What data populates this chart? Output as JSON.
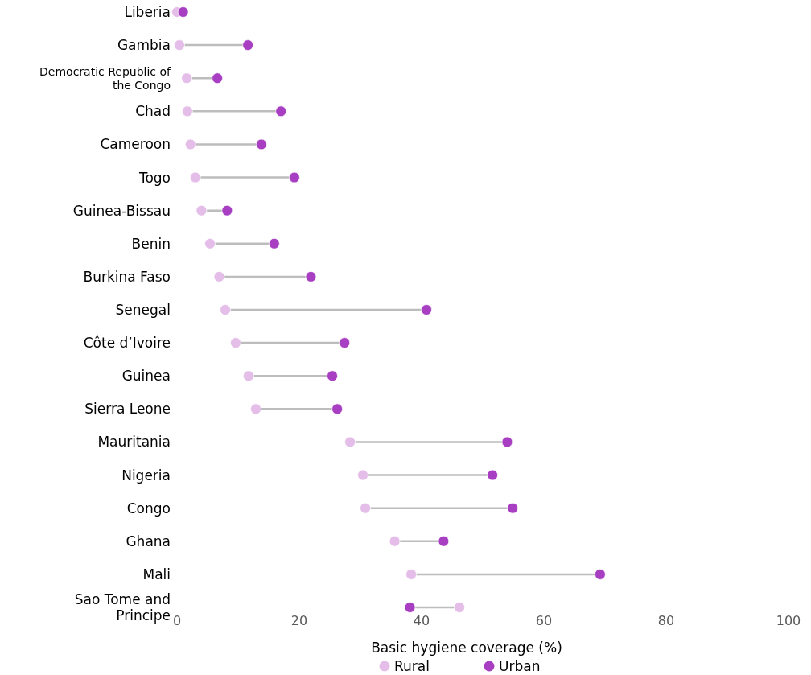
{
  "chart_data": {
    "type": "scatter",
    "orientation": "horizontal",
    "xlabel": "Basic hygiene coverage (%)",
    "categories": [
      "Liberia",
      "Gambia",
      "Democratic Republic of the Congo",
      "Chad",
      "Cameroon",
      "Togo",
      "Guinea-Bissau",
      "Benin",
      "Burkina Faso",
      "Senegal",
      "Côte d’Ivoire",
      "Guinea",
      "Sierra Leone",
      "Mauritania",
      "Nigeria",
      "Congo",
      "Ghana",
      "Mali",
      "Sao Tome and Principe"
    ],
    "series": [
      {
        "name": "Rural",
        "color": "#e4bde8",
        "values": [
          0,
          0.4,
          1.6,
          1.7,
          2.2,
          3,
          4,
          5.4,
          6.9,
          7.9,
          9.6,
          11.7,
          12.9,
          28.3,
          30.4,
          30.8,
          35.6,
          38.3,
          46.2
        ]
      },
      {
        "name": "Urban",
        "color": "#a83fc3",
        "values": [
          1,
          11.6,
          6.6,
          17,
          13.8,
          19.2,
          8.2,
          15.9,
          21.9,
          40.8,
          27.4,
          25.4,
          26.2,
          54,
          51.6,
          54.9,
          43.6,
          69.2,
          38.1
        ]
      }
    ],
    "xlim": [
      0,
      100
    ],
    "xticks": [
      0,
      20,
      40,
      60,
      80,
      100
    ],
    "marker": "circle",
    "legend": "bottom",
    "grid": false
  }
}
